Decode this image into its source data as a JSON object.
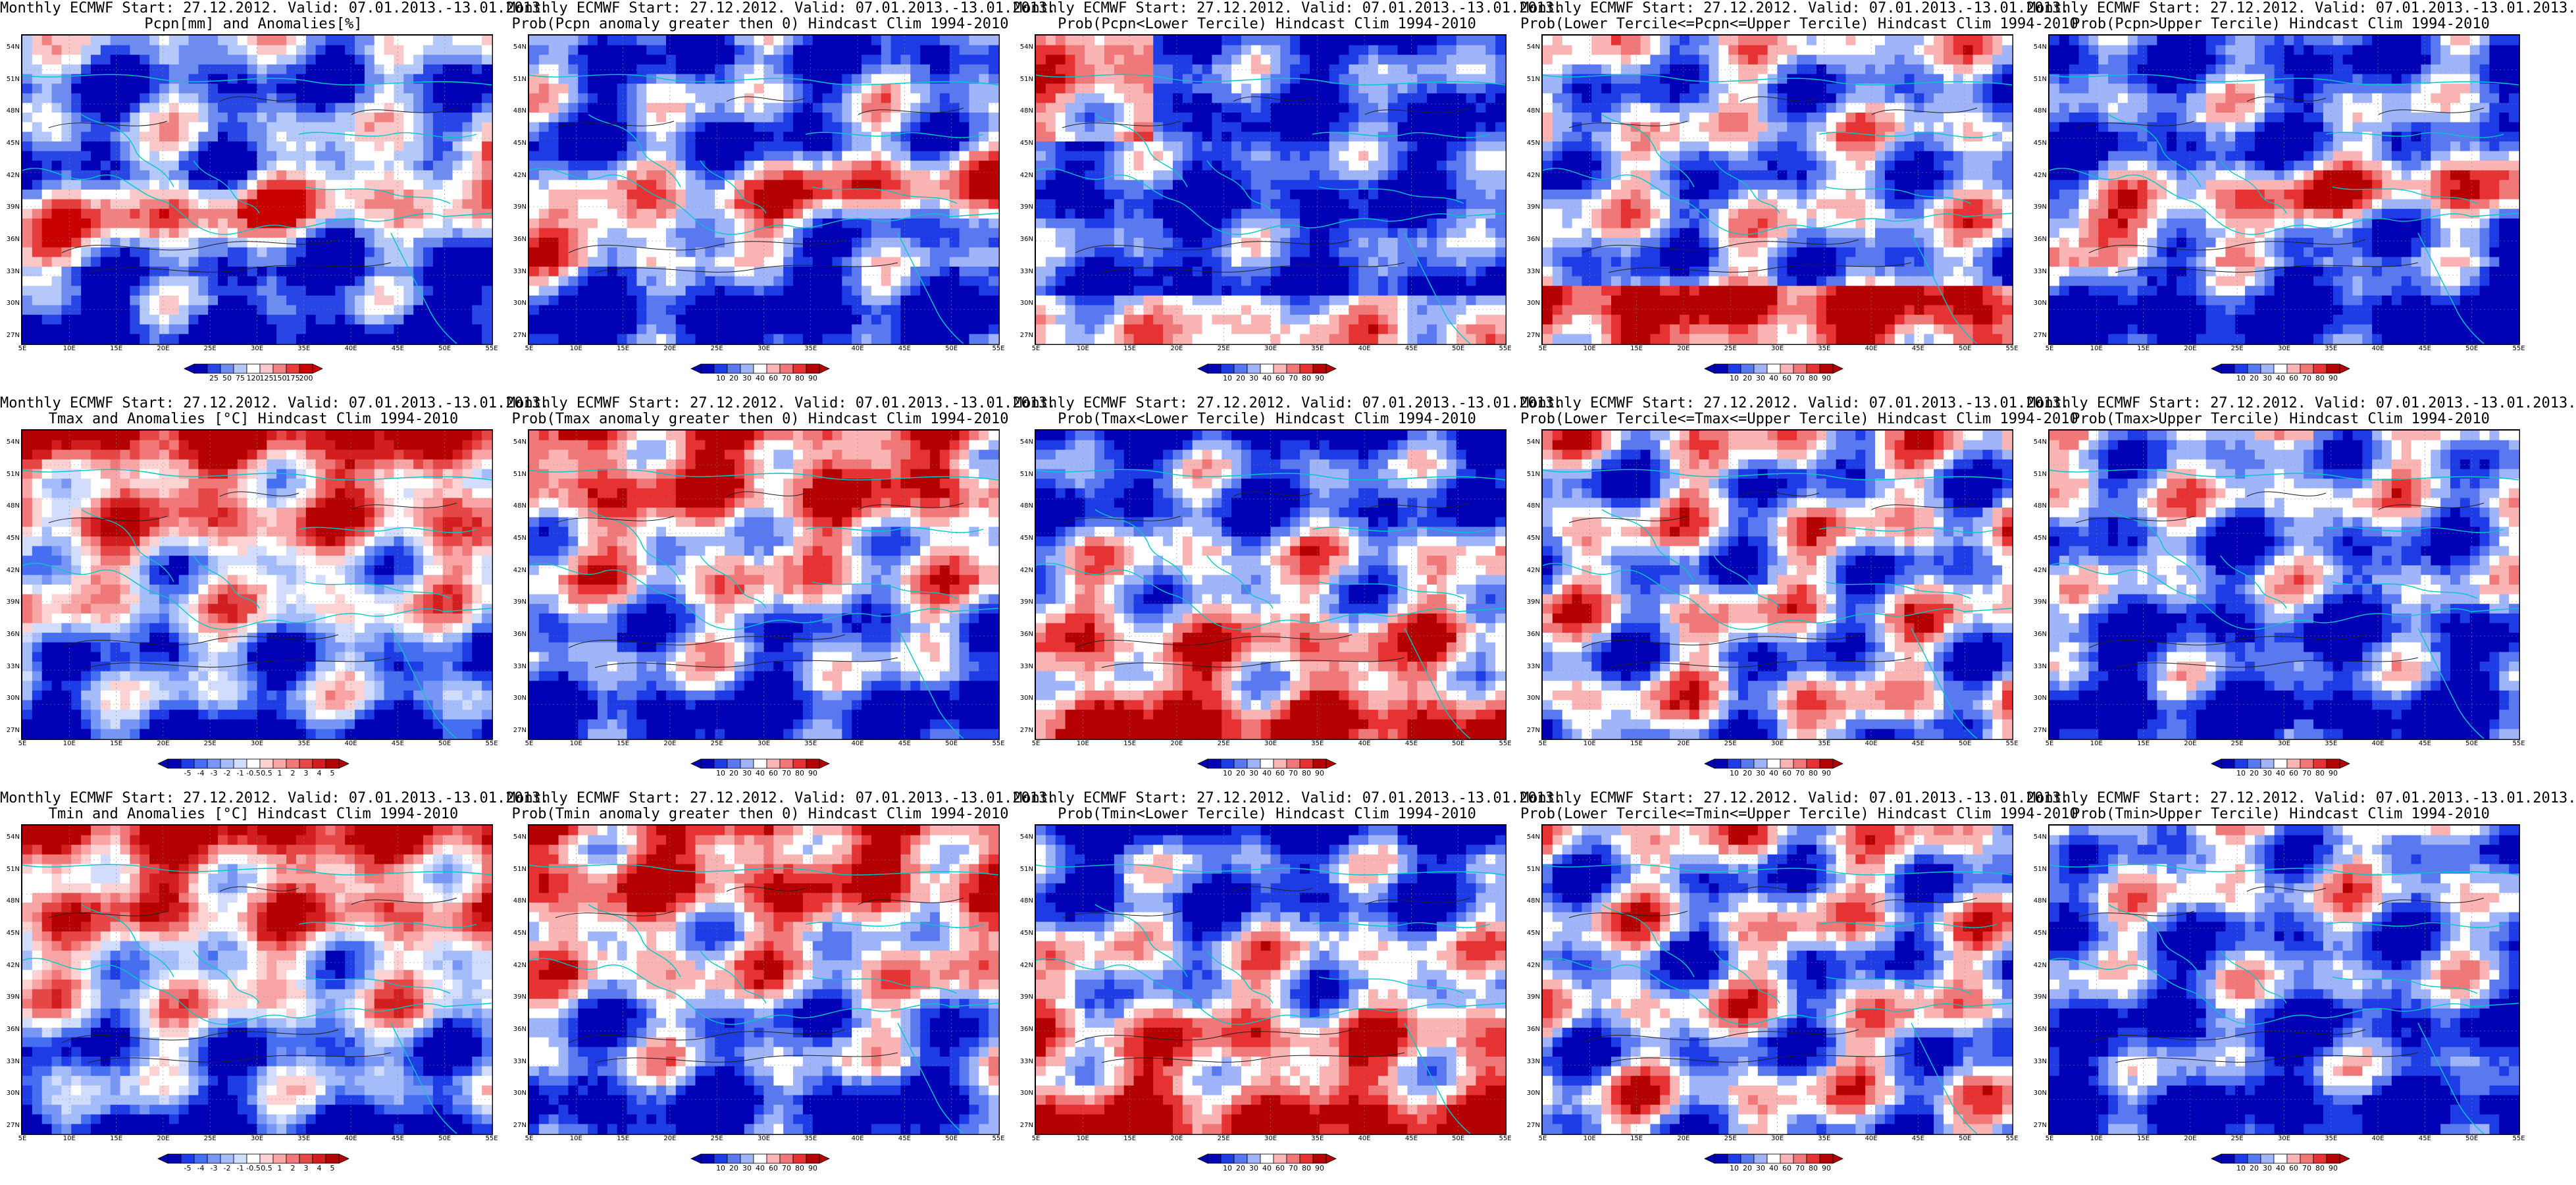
{
  "figure": {
    "rows": [
      {
        "variable": "Pcpn",
        "panels": [
          {
            "title_line1": "Monthly ECMWF Start: 27.12.2012. Valid: 07.01.2013.-13.01.2013.",
            "title_line2": "Pcpn[mm] and Anomalies[%]",
            "scale": "pcpn_anom",
            "dominant": "wet-south-dry-north"
          },
          {
            "title_line1": "Monthly ECMWF Start: 27.12.2012. Valid: 07.01.2013.-13.01.2013.",
            "title_line2": "Prob(Pcpn anomaly greater then 0) Hindcast Clim 1994-2010",
            "scale": "prob",
            "dominant": "wet-south-dry-north"
          },
          {
            "title_line1": "Monthly ECMWF Start: 27.12.2012. Valid: 07.01.2013.-13.01.2013.",
            "title_line2": "Prob(Pcpn<Lower Tercile) Hindcast Clim 1994-2010",
            "scale": "prob",
            "dominant": "blue-heavy"
          },
          {
            "title_line1": "Monthly ECMWF Start: 27.12.2012. Valid: 07.01.2013.-13.01.2013.",
            "title_line2": "Prob(Lower Tercile<=Pcpn<=Upper Tercile) Hindcast Clim 1994-2010",
            "scale": "prob",
            "dominant": "mixed-red-south"
          },
          {
            "title_line1": "Monthly ECMWF Start: 27.12.2012. Valid: 07.01.2013.-13.01.2013.",
            "title_line2": "Prob(Pcpn>Upper Tercile) Hindcast Clim 1994-2010",
            "scale": "prob",
            "dominant": "wet-south-dry-north"
          }
        ]
      },
      {
        "variable": "Tmax",
        "panels": [
          {
            "title_line1": "Monthly ECMWF Start: 27.12.2012. Valid: 07.01.2013.-13.01.2013.",
            "title_line2": "Tmax and Anomalies [°C] Hindcast Clim 1994-2010",
            "scale": "temp_anom",
            "dominant": "warm-north-cool-south"
          },
          {
            "title_line1": "Monthly ECMWF Start: 27.12.2012. Valid: 07.01.2013.-13.01.2013.",
            "title_line2": "Prob(Tmax anomaly greater then 0) Hindcast Clim 1994-2010",
            "scale": "prob",
            "dominant": "warm-north-cool-south"
          },
          {
            "title_line1": "Monthly ECMWF Start: 27.12.2012. Valid: 07.01.2013.-13.01.2013.",
            "title_line2": "Prob(Tmax<Lower Tercile) Hindcast Clim 1994-2010",
            "scale": "prob",
            "dominant": "blue-north-red-south"
          },
          {
            "title_line1": "Monthly ECMWF Start: 27.12.2012. Valid: 07.01.2013.-13.01.2013.",
            "title_line2": "Prob(Lower Tercile<=Tmax<=Upper Tercile) Hindcast Clim 1994-2010",
            "scale": "prob",
            "dominant": "light-mixed"
          },
          {
            "title_line1": "Monthly ECMWF Start: 27.12.2012. Valid: 07.01.2013.-13.01.2013.",
            "title_line2": "Prob(Tmax>Upper Tercile) Hindcast Clim 1994-2010",
            "scale": "prob",
            "dominant": "blue-south"
          }
        ]
      },
      {
        "variable": "Tmin",
        "panels": [
          {
            "title_line1": "Monthly ECMWF Start: 27.12.2012. Valid: 07.01.2013.-13.01.2013.",
            "title_line2": "Tmin and Anomalies [°C] Hindcast Clim 1994-2010",
            "scale": "temp_anom",
            "dominant": "warm-north-cool-south"
          },
          {
            "title_line1": "Monthly ECMWF Start: 27.12.2012. Valid: 07.01.2013.-13.01.2013.",
            "title_line2": "Prob(Tmin anomaly greater then 0) Hindcast Clim 1994-2010",
            "scale": "prob",
            "dominant": "warm-north-cool-south"
          },
          {
            "title_line1": "Monthly ECMWF Start: 27.12.2012. Valid: 07.01.2013.-13.01.2013.",
            "title_line2": "Prob(Tmin<Lower Tercile) Hindcast Clim 1994-2010",
            "scale": "prob",
            "dominant": "blue-north-red-south"
          },
          {
            "title_line1": "Monthly ECMWF Start: 27.12.2012. Valid: 07.01.2013.-13.01.2013.",
            "title_line2": "Prob(Lower Tercile<=Tmin<=Upper Tercile) Hindcast Clim 1994-2010",
            "scale": "prob",
            "dominant": "light-mixed"
          },
          {
            "title_line1": "Monthly ECMWF Start: 27.12.2012. Valid: 07.01.2013.-13.01.2013.",
            "title_line2": "Prob(Tmin>Upper Tercile) Hindcast Clim 1994-2010",
            "scale": "prob",
            "dominant": "blue-south"
          }
        ]
      }
    ]
  },
  "axes": {
    "lat_labels": [
      "54N",
      "51N",
      "48N",
      "45N",
      "42N",
      "39N",
      "36N",
      "33N",
      "30N",
      "27N"
    ],
    "lon_labels": [
      "5E",
      "10E",
      "15E",
      "20E",
      "25E",
      "30E",
      "35E",
      "40E",
      "45E",
      "50E",
      "55E"
    ]
  },
  "scales": {
    "pcpn_anom": {
      "ticks": [
        "25",
        "50",
        "75",
        "120",
        "125",
        "150",
        "175",
        "200"
      ],
      "colors": [
        "#0000b4",
        "#2846e6",
        "#6e8cf0",
        "#b4c8fa",
        "#ffffff",
        "#fac8c8",
        "#f08282",
        "#e63c3c",
        "#c80000"
      ]
    },
    "prob": {
      "ticks": [
        "10",
        "20",
        "30",
        "40",
        "60",
        "70",
        "80",
        "90"
      ],
      "colors": [
        "#0000b4",
        "#1e3ce6",
        "#5a78f0",
        "#a0b4fa",
        "#ffffff",
        "#fab4b4",
        "#f07878",
        "#e63232",
        "#b40000"
      ]
    },
    "temp_anom": {
      "ticks": [
        "-5",
        "-4",
        "-3",
        "-2",
        "-1",
        "-0.5",
        "0.5",
        "1",
        "2",
        "3",
        "4",
        "5"
      ],
      "colors": [
        "#0000b4",
        "#1e3ce6",
        "#466ef0",
        "#7896f5",
        "#a5bcfa",
        "#d2dcfc",
        "#ffffff",
        "#fcd2d2",
        "#faa5a5",
        "#f07878",
        "#e64646",
        "#d21e1e",
        "#b40000"
      ]
    }
  },
  "overlay_colors": {
    "coast": "#00c8c8",
    "contour": "#202020"
  }
}
